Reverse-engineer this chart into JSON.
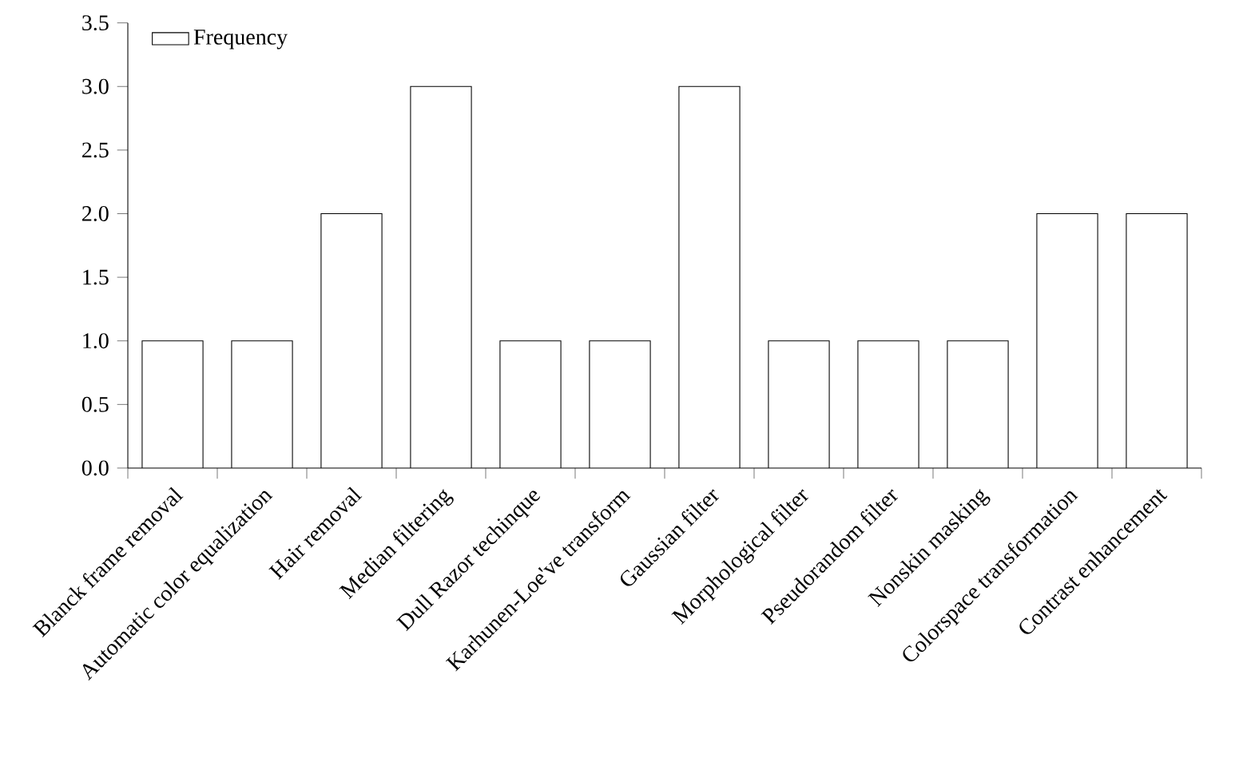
{
  "chart_data": {
    "type": "bar",
    "categories": [
      "Blanck frame removal",
      "Automatic color equalization",
      "Hair removal",
      "Median filtering",
      "Dull Razor techinque",
      "Karhunen-Loe've transform",
      "Gaussian filter",
      "Morphological filter",
      "Pseudorandom filter",
      "Nonskin masking",
      "Colorspace transformation",
      "Contrast enhancement"
    ],
    "series": [
      {
        "name": "Frequency",
        "color": "#ffffff",
        "values": [
          1,
          1,
          2,
          3,
          1,
          1,
          3,
          1,
          1,
          1,
          2,
          2
        ]
      }
    ],
    "ylim": [
      0,
      3.5
    ],
    "yticks": [
      {
        "value": 0,
        "label": "0.0"
      },
      {
        "value": 0.5,
        "label": "0.5"
      },
      {
        "value": 1,
        "label": "1.0"
      },
      {
        "value": 1.5,
        "label": "1.5"
      },
      {
        "value": 2,
        "label": "2.0"
      },
      {
        "value": 2.5,
        "label": "2.5"
      },
      {
        "value": 3,
        "label": "3.0"
      },
      {
        "value": 3.5,
        "label": "3.5"
      }
    ],
    "legend": "top left"
  }
}
